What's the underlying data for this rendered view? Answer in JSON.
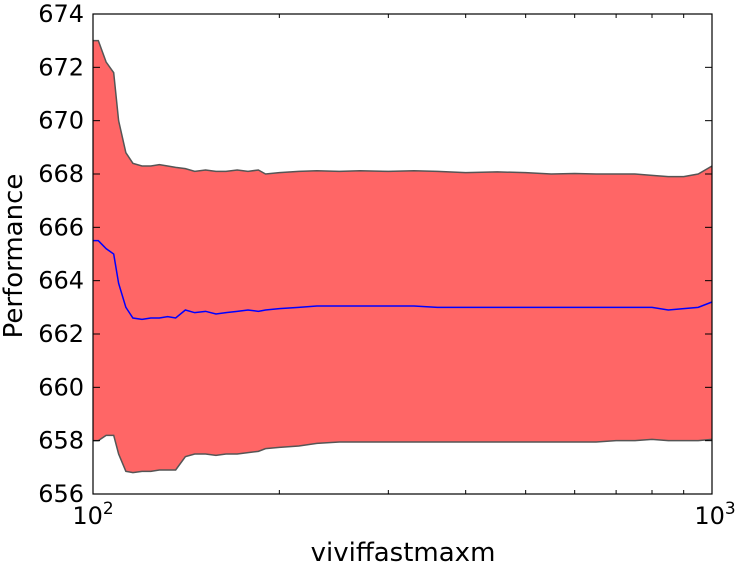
{
  "chart_data": {
    "type": "area",
    "title": "",
    "xlabel": "viviffastmaxm",
    "ylabel": "Performance",
    "x_scale": "log",
    "xlim": [
      100,
      1000
    ],
    "ylim": [
      656,
      674
    ],
    "grid": false,
    "legend": "none",
    "x_ticks": [
      {
        "value": 100,
        "base": "10",
        "exp": "2"
      },
      {
        "value": 1000,
        "base": "10",
        "exp": "3"
      }
    ],
    "y_ticks": [
      656,
      658,
      660,
      662,
      664,
      666,
      668,
      670,
      672,
      674
    ],
    "colors": {
      "band_fill": "#ff6666",
      "band_edge": "#555555",
      "mean_line": "#0000ff"
    },
    "x": [
      100,
      102,
      105,
      108,
      110,
      113,
      116,
      120,
      124,
      128,
      132,
      136,
      141,
      146,
      152,
      158,
      164,
      171,
      178,
      185,
      190,
      200,
      215,
      230,
      250,
      270,
      300,
      330,
      360,
      400,
      450,
      500,
      550,
      600,
      650,
      700,
      750,
      800,
      850,
      900,
      950,
      1000
    ],
    "series": [
      {
        "role": "upper",
        "values": [
          673.0,
          673.0,
          672.2,
          671.8,
          670.0,
          668.8,
          668.4,
          668.3,
          668.3,
          668.35,
          668.3,
          668.25,
          668.2,
          668.1,
          668.15,
          668.1,
          668.1,
          668.15,
          668.1,
          668.15,
          668.0,
          668.05,
          668.1,
          668.12,
          668.1,
          668.12,
          668.1,
          668.12,
          668.1,
          668.05,
          668.08,
          668.05,
          668.0,
          668.02,
          668.0,
          668.0,
          668.0,
          667.95,
          667.9,
          667.9,
          668.0,
          668.3
        ]
      },
      {
        "role": "mean",
        "values": [
          665.5,
          665.5,
          665.2,
          665.0,
          663.9,
          663.0,
          662.6,
          662.55,
          662.6,
          662.6,
          662.65,
          662.6,
          662.9,
          662.8,
          662.85,
          662.75,
          662.8,
          662.85,
          662.9,
          662.85,
          662.9,
          662.95,
          663.0,
          663.05,
          663.05,
          663.05,
          663.05,
          663.05,
          663.0,
          663.0,
          663.0,
          663.0,
          663.0,
          663.0,
          663.0,
          663.0,
          663.0,
          663.0,
          662.9,
          662.95,
          663.0,
          663.2
        ]
      },
      {
        "role": "lower",
        "values": [
          658.0,
          658.0,
          658.2,
          658.2,
          657.5,
          656.85,
          656.8,
          656.85,
          656.85,
          656.9,
          656.9,
          656.9,
          657.4,
          657.5,
          657.5,
          657.45,
          657.5,
          657.5,
          657.55,
          657.6,
          657.7,
          657.75,
          657.8,
          657.9,
          657.95,
          657.95,
          657.95,
          657.95,
          657.95,
          657.95,
          657.95,
          657.95,
          657.95,
          657.95,
          657.95,
          658.0,
          658.0,
          658.05,
          658.0,
          658.0,
          658.0,
          658.05
        ]
      }
    ]
  }
}
